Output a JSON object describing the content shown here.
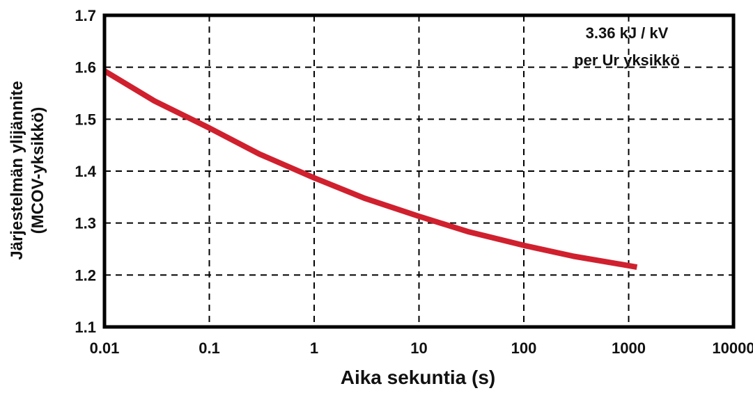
{
  "chart_data": {
    "type": "line",
    "xlabel": "Aika sekuntia (s)",
    "ylabel": [
      "Järjestelmän ylijännite",
      "(MCOV-yksikkö)"
    ],
    "xscale": "log",
    "xlim": [
      0.01,
      10000
    ],
    "ylim": [
      1.1,
      1.7
    ],
    "grid": true,
    "x_ticks": [
      "0.01",
      "0.1",
      "1",
      "10",
      "100",
      "1000",
      "10000"
    ],
    "y_ticks": [
      "1.1",
      "1.2",
      "1.3",
      "1.4",
      "1.5",
      "1.6",
      "1.7"
    ],
    "annotation": [
      "3.36 kJ / kV",
      "per Ur yksikkö"
    ],
    "series": [
      {
        "color": "#d0202e",
        "x": [
          0.01,
          0.03,
          0.1,
          0.3,
          1,
          3,
          10,
          30,
          100,
          300,
          1000,
          1200
        ],
        "y": [
          1.593,
          1.535,
          1.483,
          1.433,
          1.387,
          1.348,
          1.313,
          1.283,
          1.257,
          1.236,
          1.218,
          1.215
        ]
      }
    ]
  }
}
